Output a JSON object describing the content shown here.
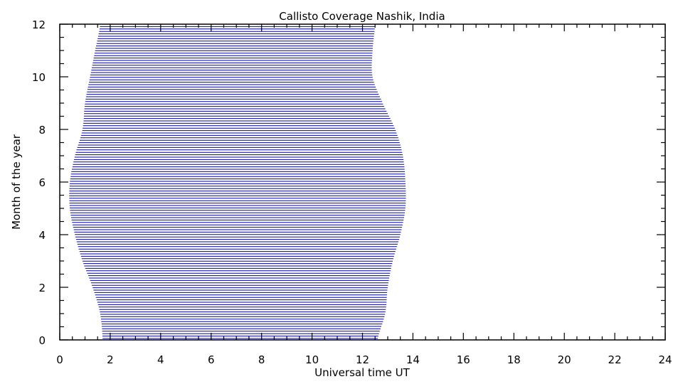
{
  "chart_data": {
    "type": "area",
    "title": "Callisto Coverage Nashik, India",
    "xlabel": "Universal time UT",
    "ylabel": "Month of the year",
    "xlim": [
      0,
      24
    ],
    "ylim": [
      0,
      12
    ],
    "x_ticks": [
      0,
      2,
      4,
      6,
      8,
      10,
      12,
      14,
      16,
      18,
      20,
      22,
      24
    ],
    "y_ticks": [
      0,
      2,
      4,
      6,
      8,
      10,
      12
    ],
    "x_minor_step": 0.5,
    "y_minor_step": 0.5,
    "fill_style": "horizontal hatch lines",
    "fill_color": "#0000a0",
    "grid": false,
    "series": [
      {
        "month": [
          0,
          1,
          2,
          3,
          4,
          5,
          6,
          7,
          8,
          9,
          10,
          11,
          12
        ],
        "start_ut": [
          1.7,
          1.6,
          1.3,
          0.9,
          0.6,
          0.4,
          0.4,
          0.6,
          0.9,
          1.0,
          1.2,
          1.4,
          1.6
        ],
        "end_ut": [
          12.6,
          12.9,
          13.0,
          13.2,
          13.5,
          13.7,
          13.7,
          13.6,
          13.3,
          12.8,
          12.4,
          12.4,
          12.5
        ]
      }
    ]
  }
}
